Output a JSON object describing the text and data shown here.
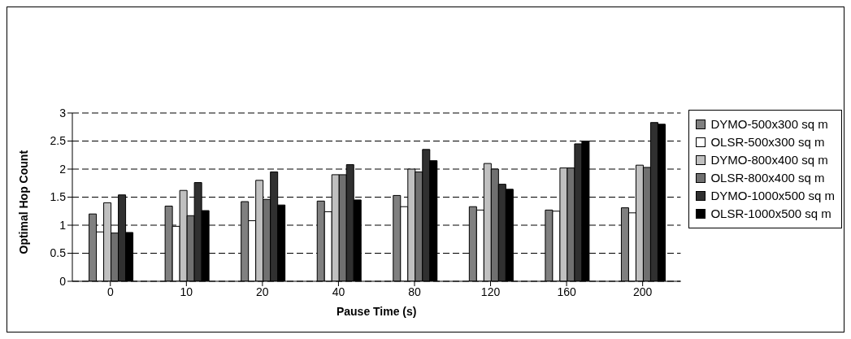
{
  "chart_data": {
    "type": "bar",
    "xlabel": "Pause Time (s)",
    "ylabel": "Optimal Hop Count",
    "categories": [
      "0",
      "10",
      "20",
      "40",
      "80",
      "120",
      "160",
      "200"
    ],
    "series": [
      {
        "name": "DYMO-500x300 sq m",
        "color": "#808080",
        "values": [
          1.2,
          1.34,
          1.42,
          1.43,
          1.53,
          1.33,
          1.27,
          1.31
        ]
      },
      {
        "name": "OLSR-500x300 sq m",
        "color": "#ffffff",
        "values": [
          0.88,
          0.98,
          1.08,
          1.24,
          1.33,
          1.27,
          1.25,
          1.22
        ]
      },
      {
        "name": "DYMO-800x400 sq m",
        "color": "#c0c0c0",
        "values": [
          1.4,
          1.62,
          1.8,
          1.9,
          2.0,
          2.1,
          2.02,
          2.07
        ]
      },
      {
        "name": "OLSR-800x400 sq m",
        "color": "#707070",
        "values": [
          0.86,
          1.17,
          1.46,
          1.9,
          1.95,
          2.0,
          2.02,
          2.03
        ]
      },
      {
        "name": "DYMO-1000x500 sq m",
        "color": "#303030",
        "values": [
          1.54,
          1.76,
          1.95,
          2.08,
          2.35,
          1.73,
          2.45,
          2.83
        ]
      },
      {
        "name": "OLSR-1000x500 sq m",
        "color": "#000000",
        "values": [
          0.87,
          1.26,
          1.36,
          1.45,
          2.15,
          1.64,
          2.5,
          2.8
        ]
      }
    ],
    "ylim": [
      0,
      3
    ],
    "yticks": [
      0,
      0.5,
      1,
      1.5,
      2,
      2.5,
      3
    ],
    "grid": "y",
    "legend": "right"
  }
}
